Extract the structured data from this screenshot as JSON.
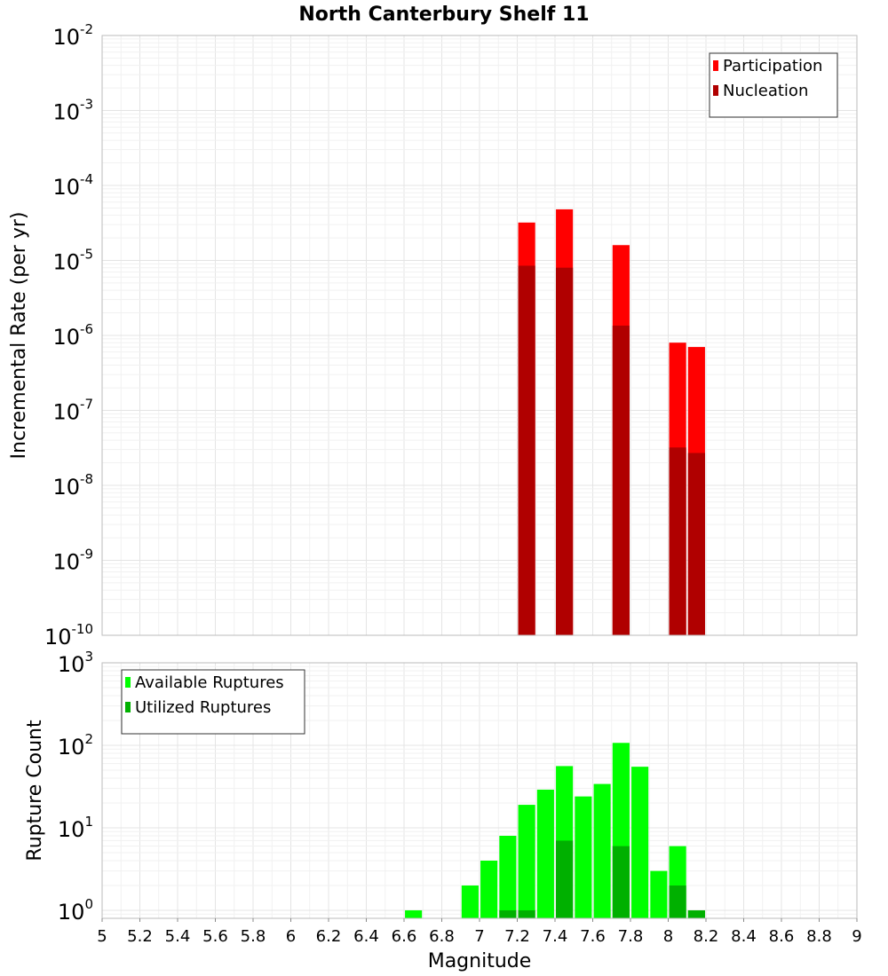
{
  "chart_data": {
    "title": "North Canterbury Shelf 11",
    "xlabel": "Magnitude",
    "x_ticks": [
      "5",
      "5.2",
      "5.4",
      "5.6",
      "5.8",
      "6",
      "6.2",
      "6.4",
      "6.6",
      "6.8",
      "7",
      "7.2",
      "7.4",
      "7.6",
      "7.8",
      "8",
      "8.2",
      "8.4",
      "8.6",
      "8.8",
      "9"
    ],
    "xlim": [
      5,
      9
    ],
    "grid": true,
    "charts": [
      {
        "type": "bar",
        "ylabel": "Incremental Rate (per yr)",
        "yscale": "log",
        "ylim": [
          1e-10,
          0.01
        ],
        "y_tick_base": "10",
        "y_tick_exponents": [
          "-10",
          "-9",
          "-8",
          "-7",
          "-6",
          "-5",
          "-4",
          "-3",
          "-2"
        ],
        "legend_position": "top-right",
        "series": [
          {
            "name": "Participation",
            "color": "#ff0000",
            "x": [
              7.25,
              7.45,
              7.75,
              8.05,
              8.15
            ],
            "values": [
              3.2e-05,
              4.8e-05,
              1.6e-05,
              8e-07,
              7e-07
            ]
          },
          {
            "name": "Nucleation",
            "color": "#b00000",
            "x": [
              7.25,
              7.45,
              7.75,
              8.05,
              8.15
            ],
            "values": [
              8.5e-06,
              8e-06,
              1.35e-06,
              3.2e-08,
              2.7e-08
            ]
          }
        ]
      },
      {
        "type": "bar",
        "ylabel": "Rupture Count",
        "yscale": "log",
        "ylim": [
          0.8,
          1000
        ],
        "y_tick_base": "10",
        "y_tick_exponents": [
          "0",
          "1",
          "2",
          "3"
        ],
        "legend_position": "top-left",
        "series": [
          {
            "name": "Available Ruptures",
            "color": "#00ff00",
            "x": [
              6.65,
              6.95,
              7.05,
              7.15,
              7.25,
              7.35,
              7.45,
              7.55,
              7.65,
              7.75,
              7.85,
              7.95,
              8.05,
              8.15
            ],
            "values": [
              1,
              2,
              4,
              8,
              19,
              29,
              56,
              24,
              34,
              107,
              55,
              3,
              6,
              1
            ]
          },
          {
            "name": "Utilized Ruptures",
            "color": "#00b000",
            "x": [
              7.15,
              7.25,
              7.45,
              7.75,
              8.05,
              8.15
            ],
            "values": [
              1,
              1,
              7,
              6,
              2,
              1
            ]
          }
        ]
      }
    ]
  }
}
